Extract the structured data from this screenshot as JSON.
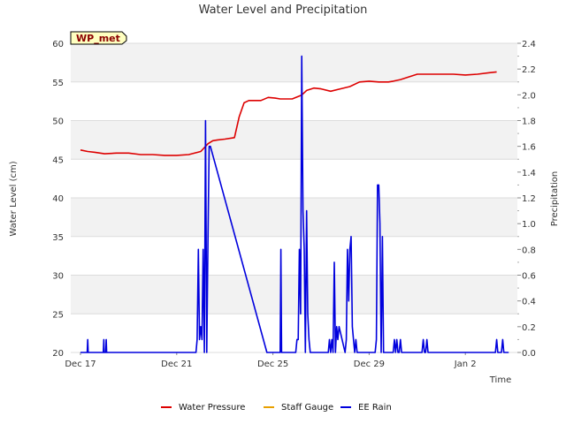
{
  "chart_data": {
    "type": "line",
    "title": "Water Level and Precipitation",
    "site_tag": "WP_met",
    "xlabel": "Time",
    "ylabel_left": "Water Level (cm)",
    "ylabel_right": "Precipitation",
    "x_range": [
      "Dec 17",
      "Jan 3"
    ],
    "x_ticks": [
      "Dec 17",
      "Dec 21",
      "Dec 25",
      "Dec 29",
      "Jan 2"
    ],
    "ylim_left": [
      20,
      60
    ],
    "y_ticks_left": [
      "20",
      "25",
      "30",
      "35",
      "40",
      "45",
      "50",
      "55",
      "60"
    ],
    "ylim_right": [
      0.0,
      2.4
    ],
    "y_ticks_right": [
      "0.0",
      "0.2",
      "0.4",
      "0.6",
      "0.8",
      "1.0",
      "1.2",
      "1.4",
      "1.6",
      "1.8",
      "2.0",
      "2.2",
      "2.4"
    ],
    "grid": "horizontal bands",
    "legend_position": "bottom",
    "series": [
      {
        "name": "Water Pressure",
        "axis": "left",
        "color": "#dd0000",
        "x": [
          0.0,
          0.3,
          0.6,
          1.0,
          1.5,
          2.0,
          2.5,
          3.0,
          3.5,
          4.0,
          4.5,
          5.0,
          5.3,
          5.5,
          5.7,
          6.0,
          6.4,
          6.6,
          6.8,
          7.0,
          7.3,
          7.5,
          7.8,
          8.1,
          8.3,
          8.8,
          9.2,
          9.4,
          9.7,
          10.0,
          10.4,
          10.8,
          11.2,
          11.6,
          12.0,
          12.4,
          12.8,
          13.0,
          13.3,
          14.0,
          14.5,
          15.0,
          15.5,
          16.0,
          16.5,
          17.0,
          17.3
        ],
        "values": [
          46.2,
          46.0,
          45.9,
          45.7,
          45.8,
          45.8,
          45.6,
          45.6,
          45.5,
          45.5,
          45.6,
          46.0,
          47.0,
          47.4,
          47.5,
          47.6,
          47.8,
          50.5,
          52.3,
          52.6,
          52.6,
          52.6,
          53.0,
          52.9,
          52.8,
          52.8,
          53.3,
          53.9,
          54.2,
          54.1,
          53.8,
          54.1,
          54.4,
          55.0,
          55.1,
          55.0,
          55.0,
          55.1,
          55.3,
          56.0,
          56.0,
          56.0,
          56.0,
          55.9,
          56.0,
          56.2,
          56.3
        ]
      },
      {
        "name": "Staff Gauge",
        "axis": "left",
        "color": "#e8a000",
        "x": [],
        "values": []
      },
      {
        "name": "EE Rain",
        "axis": "right",
        "color": "#0000dd",
        "x": [
          0.0,
          0.28,
          0.3,
          0.32,
          0.95,
          0.97,
          0.99,
          1.05,
          1.07,
          1.09,
          4.8,
          4.85,
          4.9,
          4.95,
          5.0,
          5.05,
          5.1,
          5.15,
          5.2,
          5.25,
          5.3,
          5.35,
          5.4,
          7.75,
          7.78,
          8.3,
          8.33,
          8.36,
          8.95,
          9.0,
          9.05,
          9.1,
          9.15,
          9.2,
          9.25,
          9.3,
          9.35,
          9.4,
          9.45,
          9.5,
          9.55,
          10.3,
          10.35,
          10.4,
          10.45,
          10.5,
          10.55,
          10.6,
          10.65,
          10.7,
          10.75,
          11.0,
          11.05,
          11.1,
          11.15,
          11.2,
          11.25,
          11.3,
          11.35,
          11.4,
          11.45,
          11.5,
          11.55,
          12.25,
          12.3,
          12.35,
          12.4,
          12.45,
          12.5,
          12.55,
          12.6,
          12.65,
          13.0,
          13.05,
          13.1,
          13.15,
          13.2,
          13.25,
          13.3,
          13.35,
          13.4,
          14.2,
          14.25,
          14.3,
          14.35,
          14.4,
          14.45,
          14.5,
          14.55,
          14.6,
          14.75,
          14.8,
          14.85,
          15.1,
          15.15,
          15.2,
          15.35,
          15.4,
          15.45,
          17.25,
          17.3,
          17.35,
          17.5,
          17.55,
          17.6,
          17.8
        ],
        "values": [
          0.0,
          0.0,
          0.1,
          0.0,
          0.0,
          0.1,
          0.0,
          0.0,
          0.1,
          0.0,
          0.0,
          0.1,
          0.8,
          0.1,
          0.2,
          0.1,
          0.8,
          0.0,
          1.8,
          0.0,
          0.9,
          1.6,
          1.6,
          0.0,
          0.0,
          0.0,
          0.8,
          0.0,
          0.0,
          0.1,
          0.1,
          0.8,
          0.3,
          2.3,
          1.1,
          0.8,
          0.0,
          1.1,
          0.3,
          0.1,
          0.0,
          0.0,
          0.1,
          0.0,
          0.1,
          0.0,
          0.7,
          0.0,
          0.2,
          0.1,
          0.2,
          0.0,
          0.1,
          0.8,
          0.4,
          0.8,
          0.9,
          0.2,
          0.1,
          0.0,
          0.1,
          0.0,
          0.0,
          0.0,
          0.1,
          1.3,
          1.3,
          1.0,
          0.0,
          0.9,
          0.0,
          0.0,
          0.0,
          0.1,
          0.0,
          0.1,
          0.0,
          0.0,
          0.1,
          0.0,
          0.0,
          0.0,
          0.1,
          0.0,
          0.0,
          0.1,
          0.0,
          0.0,
          0.0,
          0.0,
          0.0,
          0.0,
          0.0,
          0.0,
          0.0,
          0.0,
          0.0,
          0.0,
          0.0,
          0.0,
          0.1,
          0.0,
          0.0,
          0.1,
          0.0,
          0.0
        ]
      }
    ]
  }
}
